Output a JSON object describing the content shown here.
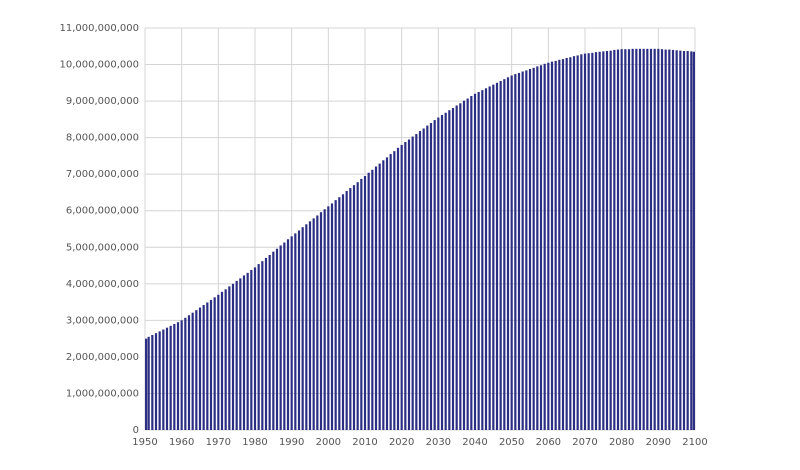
{
  "chart_data": {
    "type": "bar",
    "color": "#2b2e83",
    "grid": true,
    "x": [
      1950,
      1951,
      1952,
      1953,
      1954,
      1955,
      1956,
      1957,
      1958,
      1959,
      1960,
      1961,
      1962,
      1963,
      1964,
      1965,
      1966,
      1967,
      1968,
      1969,
      1970,
      1971,
      1972,
      1973,
      1974,
      1975,
      1976,
      1977,
      1978,
      1979,
      1980,
      1981,
      1982,
      1983,
      1984,
      1985,
      1986,
      1987,
      1988,
      1989,
      1990,
      1991,
      1992,
      1993,
      1994,
      1995,
      1996,
      1997,
      1998,
      1999,
      2000,
      2001,
      2002,
      2003,
      2004,
      2005,
      2006,
      2007,
      2008,
      2009,
      2010,
      2011,
      2012,
      2013,
      2014,
      2015,
      2016,
      2017,
      2018,
      2019,
      2020,
      2021,
      2022,
      2023,
      2024,
      2025,
      2026,
      2027,
      2028,
      2029,
      2030,
      2031,
      2032,
      2033,
      2034,
      2035,
      2036,
      2037,
      2038,
      2039,
      2040,
      2041,
      2042,
      2043,
      2044,
      2045,
      2046,
      2047,
      2048,
      2049,
      2050,
      2051,
      2052,
      2053,
      2054,
      2055,
      2056,
      2057,
      2058,
      2059,
      2060,
      2061,
      2062,
      2063,
      2064,
      2065,
      2066,
      2067,
      2068,
      2069,
      2070,
      2071,
      2072,
      2073,
      2074,
      2075,
      2076,
      2077,
      2078,
      2079,
      2080,
      2081,
      2082,
      2083,
      2084,
      2085,
      2086,
      2087,
      2088,
      2089,
      2090,
      2091,
      2092,
      2093,
      2094,
      2095,
      2096,
      2097,
      2098,
      2099,
      2100
    ],
    "values": [
      2500000000,
      2550000000,
      2600000000,
      2650000000,
      2700000000,
      2750000000,
      2800000000,
      2850000000,
      2900000000,
      2950000000,
      3000000000,
      3070000000,
      3140000000,
      3210000000,
      3280000000,
      3350000000,
      3420000000,
      3490000000,
      3560000000,
      3630000000,
      3700000000,
      3780000000,
      3850000000,
      3930000000,
      4000000000,
      4080000000,
      4150000000,
      4230000000,
      4300000000,
      4380000000,
      4450000000,
      4540000000,
      4620000000,
      4710000000,
      4790000000,
      4880000000,
      4960000000,
      5050000000,
      5130000000,
      5220000000,
      5300000000,
      5380000000,
      5460000000,
      5550000000,
      5630000000,
      5710000000,
      5790000000,
      5870000000,
      5960000000,
      6040000000,
      6120000000,
      6200000000,
      6290000000,
      6370000000,
      6450000000,
      6540000000,
      6620000000,
      6700000000,
      6780000000,
      6870000000,
      6950000000,
      7040000000,
      7120000000,
      7210000000,
      7290000000,
      7380000000,
      7460000000,
      7550000000,
      7630000000,
      7720000000,
      7800000000,
      7880000000,
      7950000000,
      8030000000,
      8100000000,
      8180000000,
      8250000000,
      8330000000,
      8400000000,
      8480000000,
      8550000000,
      8620000000,
      8680000000,
      8750000000,
      8810000000,
      8880000000,
      8940000000,
      9010000000,
      9070000000,
      9140000000,
      9200000000,
      9250000000,
      9300000000,
      9350000000,
      9400000000,
      9450000000,
      9500000000,
      9550000000,
      9600000000,
      9650000000,
      9700000000,
      9740000000,
      9770000000,
      9810000000,
      9840000000,
      9880000000,
      9910000000,
      9950000000,
      9980000000,
      10020000000,
      10050000000,
      10080000000,
      10100000000,
      10130000000,
      10150000000,
      10180000000,
      10200000000,
      10230000000,
      10250000000,
      10280000000,
      10300000000,
      10310000000,
      10320000000,
      10340000000,
      10350000000,
      10360000000,
      10370000000,
      10380000000,
      10400000000,
      10410000000,
      10420000000,
      10420000000,
      10420000000,
      10430000000,
      10430000000,
      10430000000,
      10430000000,
      10430000000,
      10430000000,
      10430000000,
      10430000000,
      10420000000,
      10410000000,
      10410000000,
      10400000000,
      10390000000,
      10380000000,
      10370000000,
      10370000000,
      10360000000,
      10350000000
    ],
    "xlim": [
      1950,
      2100
    ],
    "xticks": [
      1950,
      1960,
      1970,
      1980,
      1990,
      2000,
      2010,
      2020,
      2030,
      2040,
      2050,
      2060,
      2070,
      2080,
      2090,
      2100
    ],
    "ylim": [
      0,
      11000000000
    ],
    "yticks": [
      0,
      {
        "value": 1000000000,
        "label": "1,000,000,000"
      },
      {
        "value": 2000000000,
        "label": "2,000,000,000"
      },
      {
        "value": 3000000000,
        "label": "3,000,000,000"
      },
      {
        "value": 4000000000,
        "label": "4,000,000,000"
      },
      {
        "value": 5000000000,
        "label": "5,000,000,000"
      },
      {
        "value": 6000000000,
        "label": "6,000,000,000"
      },
      {
        "value": 7000000000,
        "label": "7,000,000,000"
      },
      {
        "value": 8000000000,
        "label": "8,000,000,000"
      },
      {
        "value": 9000000000,
        "label": "9,000,000,000"
      },
      {
        "value": 10000000000,
        "label": "10,000,000,000"
      },
      {
        "value": 11000000000,
        "label": "11,000,000,000"
      }
    ]
  }
}
